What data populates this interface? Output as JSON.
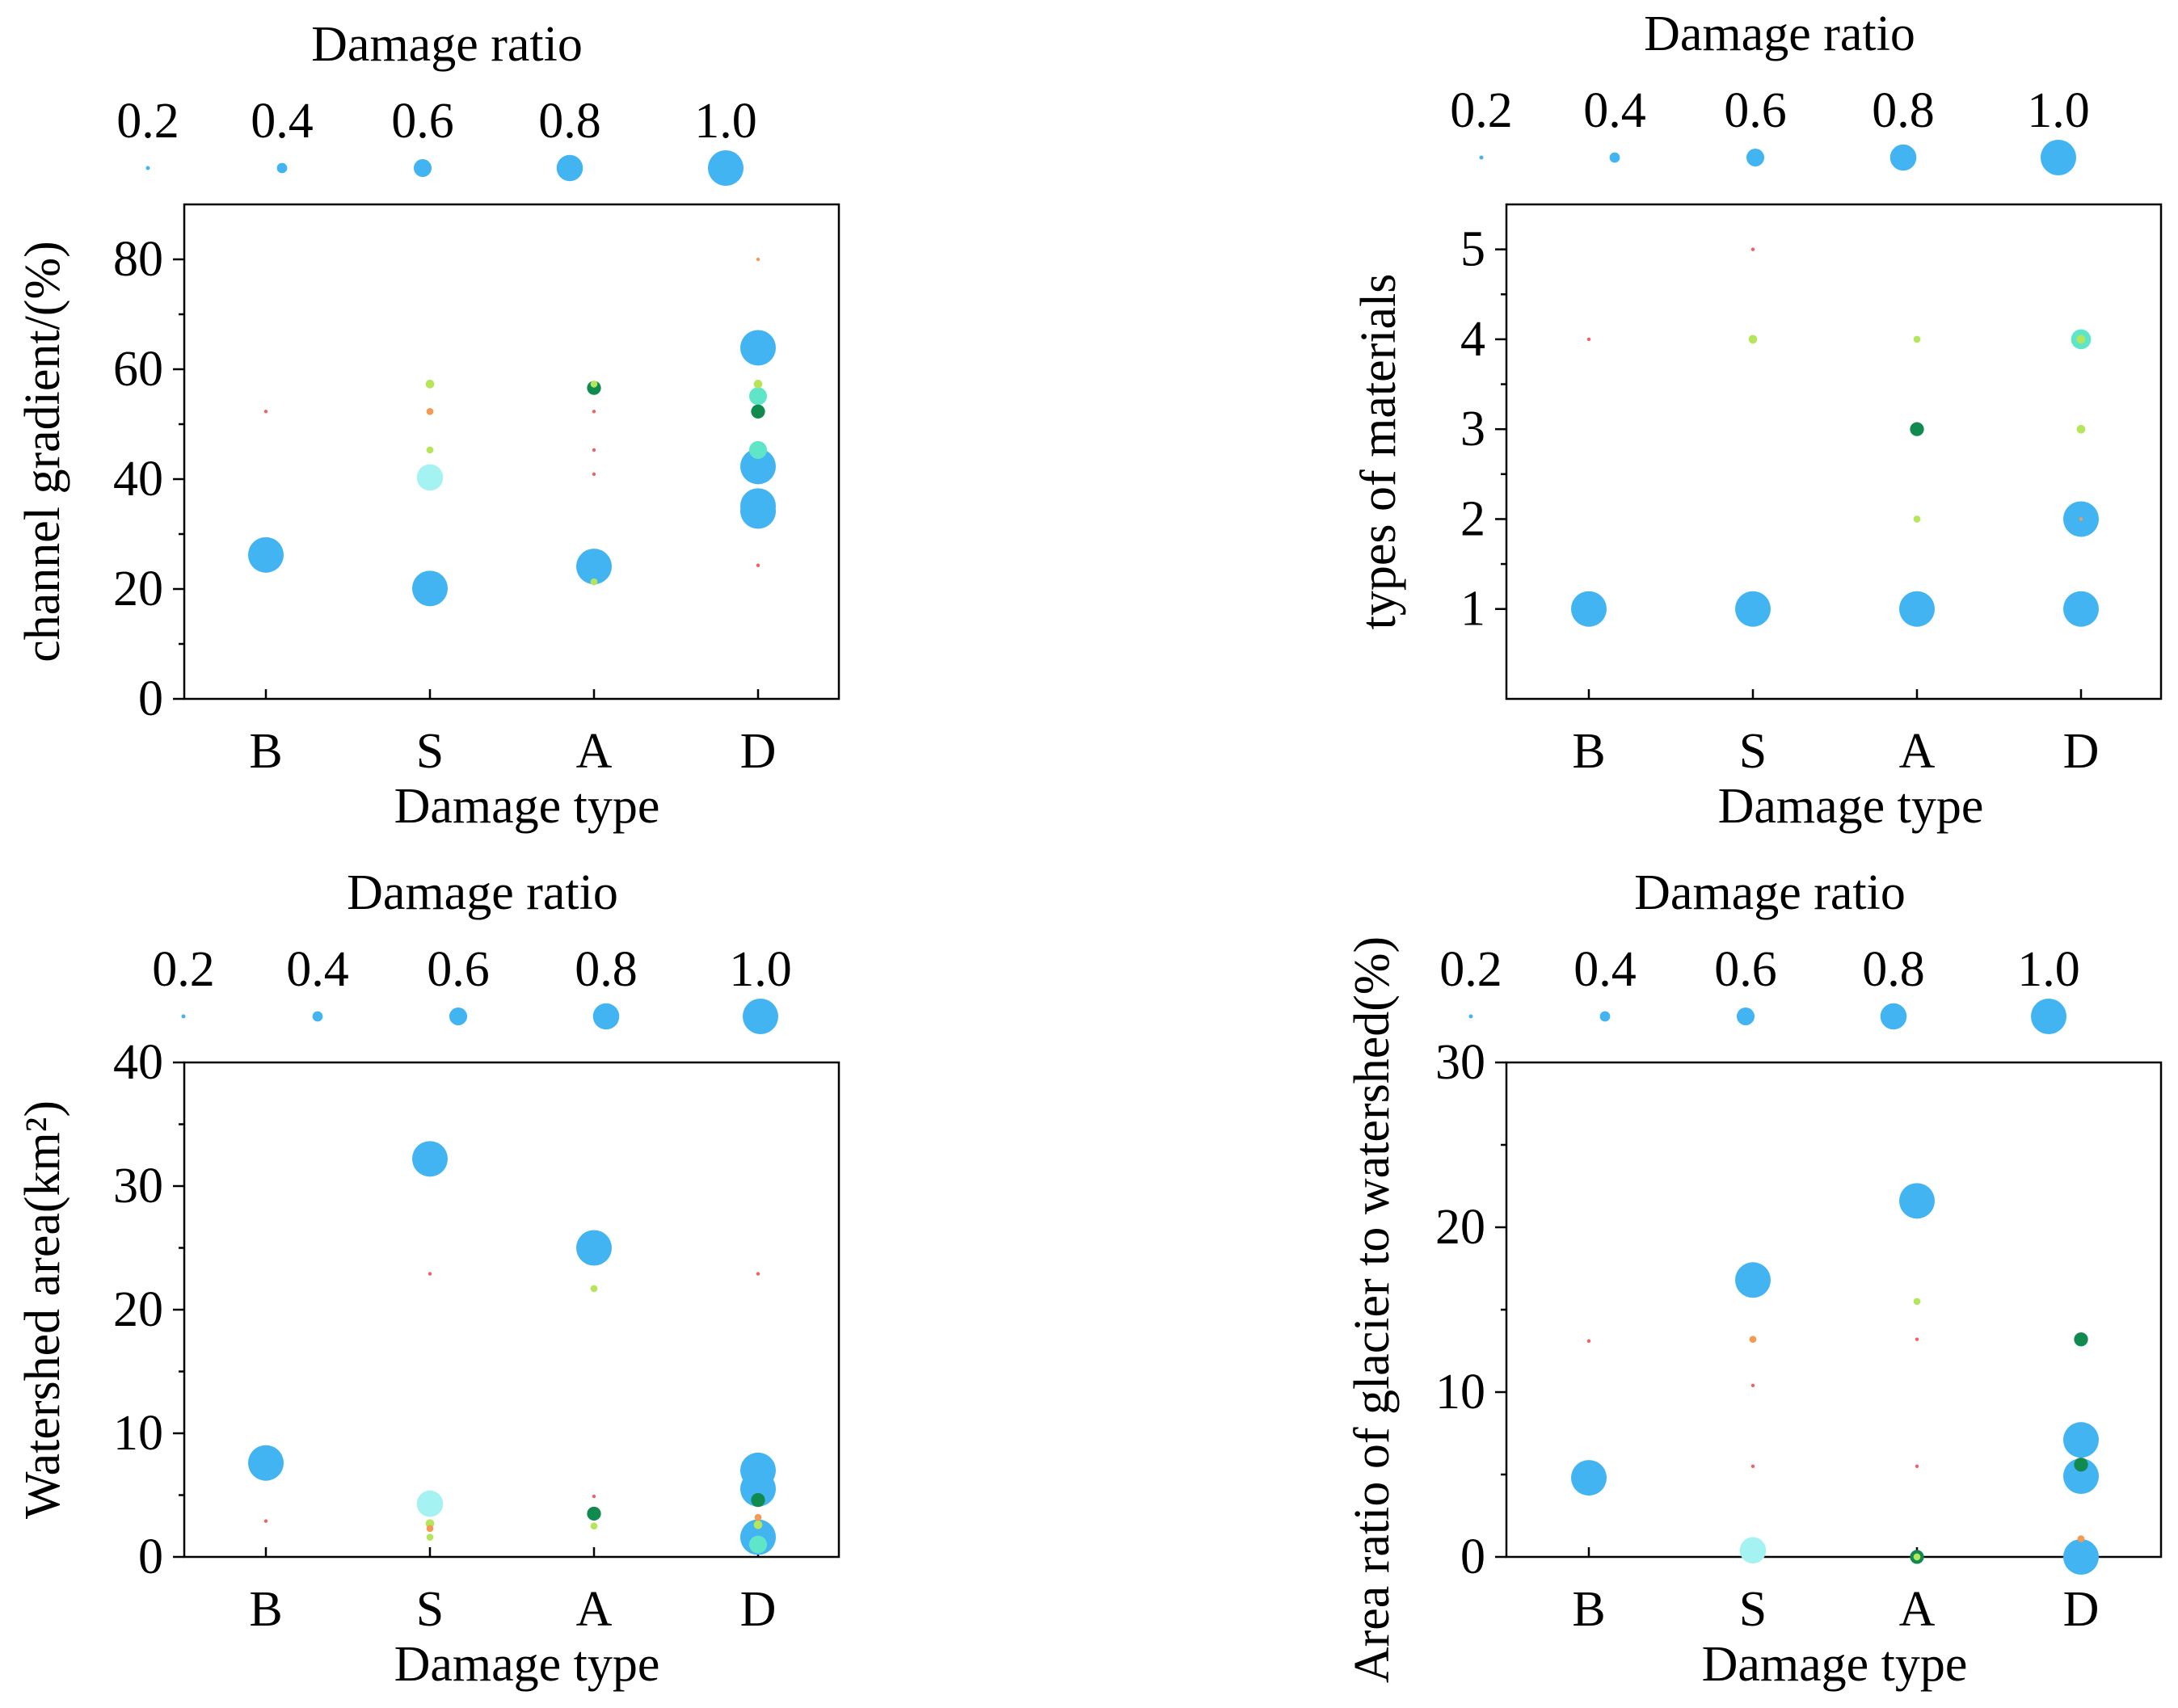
{
  "colors": {
    "main_blue": "#42B4F2",
    "light_cyan": "#A4F2F2",
    "aqua": "#5FE6C8",
    "dark_green": "#108A4E",
    "yellow_green": "#B5E55A",
    "orange": "#F59A52",
    "red": "#F26060"
  },
  "chart_data": [
    {
      "id": "gradient",
      "type": "scatter",
      "legend_title": "Damage ratio",
      "legend_values": [
        "0.2",
        "0.4",
        "0.6",
        "0.8",
        "1.0"
      ],
      "xlabel": "Damage type",
      "ylabel": "channel gradient/(%)",
      "categories": [
        "B",
        "S",
        "A",
        "D"
      ],
      "ylim": [
        0,
        90
      ],
      "yticks": [
        "0",
        "20",
        "40",
        "60",
        "80"
      ],
      "points": [
        {
          "x": "B",
          "y": 26.2,
          "ratio": 1.0,
          "color": "main_blue"
        },
        {
          "x": "B",
          "y": 52.3,
          "ratio": 0.05,
          "color": "red"
        },
        {
          "x": "S",
          "y": 20.1,
          "ratio": 1.0,
          "color": "main_blue"
        },
        {
          "x": "S",
          "y": 40.3,
          "ratio": 0.8,
          "color": "light_cyan"
        },
        {
          "x": "S",
          "y": 45.3,
          "ratio": 0.3,
          "color": "yellow_green"
        },
        {
          "x": "S",
          "y": 52.3,
          "ratio": 0.3,
          "color": "orange"
        },
        {
          "x": "S",
          "y": 57.3,
          "ratio": 0.35,
          "color": "yellow_green"
        },
        {
          "x": "A",
          "y": 24.1,
          "ratio": 1.0,
          "color": "main_blue"
        },
        {
          "x": "A",
          "y": 21.3,
          "ratio": 0.3,
          "color": "yellow_green"
        },
        {
          "x": "A",
          "y": 40.9,
          "ratio": 0.05,
          "color": "red"
        },
        {
          "x": "A",
          "y": 45.3,
          "ratio": 0.04,
          "color": "red"
        },
        {
          "x": "A",
          "y": 52.3,
          "ratio": 0.05,
          "color": "red"
        },
        {
          "x": "A",
          "y": 56.6,
          "ratio": 0.5,
          "color": "dark_green"
        },
        {
          "x": "A",
          "y": 57.3,
          "ratio": 0.3,
          "color": "yellow_green"
        },
        {
          "x": "D",
          "y": 24.3,
          "ratio": 0.05,
          "color": "red"
        },
        {
          "x": "D",
          "y": 34.2,
          "ratio": 1.0,
          "color": "main_blue"
        },
        {
          "x": "D",
          "y": 35.1,
          "ratio": 1.0,
          "color": "main_blue"
        },
        {
          "x": "D",
          "y": 42.3,
          "ratio": 1.0,
          "color": "main_blue"
        },
        {
          "x": "D",
          "y": 45.3,
          "ratio": 0.6,
          "color": "aqua"
        },
        {
          "x": "D",
          "y": 52.3,
          "ratio": 0.5,
          "color": "dark_green"
        },
        {
          "x": "D",
          "y": 55.1,
          "ratio": 0.6,
          "color": "aqua"
        },
        {
          "x": "D",
          "y": 57.3,
          "ratio": 0.35,
          "color": "yellow_green"
        },
        {
          "x": "D",
          "y": 63.9,
          "ratio": 1.0,
          "color": "main_blue"
        },
        {
          "x": "D",
          "y": 80.0,
          "ratio": 0.15,
          "color": "orange"
        }
      ]
    },
    {
      "id": "materials",
      "type": "scatter",
      "legend_title": "Damage ratio",
      "legend_values": [
        "0.2",
        "0.4",
        "0.6",
        "0.8",
        "1.0"
      ],
      "xlabel": "Damage type",
      "ylabel": "types of materials",
      "categories": [
        "B",
        "S",
        "A",
        "D"
      ],
      "ylim": [
        0,
        5.5
      ],
      "yticks": [
        "1",
        "2",
        "3",
        "4",
        "5"
      ],
      "points": [
        {
          "x": "B",
          "y": 1,
          "ratio": 1.0,
          "color": "main_blue"
        },
        {
          "x": "B",
          "y": 4,
          "ratio": 0.04,
          "color": "red"
        },
        {
          "x": "S",
          "y": 1,
          "ratio": 1.0,
          "color": "main_blue"
        },
        {
          "x": "S",
          "y": 4,
          "ratio": 0.35,
          "color": "yellow_green"
        },
        {
          "x": "S",
          "y": 5,
          "ratio": 0.04,
          "color": "red"
        },
        {
          "x": "A",
          "y": 1,
          "ratio": 1.0,
          "color": "main_blue"
        },
        {
          "x": "A",
          "y": 2,
          "ratio": 0.3,
          "color": "yellow_green"
        },
        {
          "x": "A",
          "y": 3,
          "ratio": 0.5,
          "color": "dark_green"
        },
        {
          "x": "A",
          "y": 4,
          "ratio": 0.3,
          "color": "yellow_green"
        },
        {
          "x": "D",
          "y": 1,
          "ratio": 1.0,
          "color": "main_blue"
        },
        {
          "x": "D",
          "y": 2,
          "ratio": 1.0,
          "color": "main_blue"
        },
        {
          "x": "D",
          "y": 2,
          "ratio": 0.15,
          "color": "orange"
        },
        {
          "x": "D",
          "y": 3,
          "ratio": 0.35,
          "color": "yellow_green"
        },
        {
          "x": "D",
          "y": 4,
          "ratio": 0.65,
          "color": "aqua"
        },
        {
          "x": "D",
          "y": 4,
          "ratio": 0.35,
          "color": "yellow_green"
        }
      ]
    },
    {
      "id": "watershed",
      "type": "scatter",
      "legend_title": "Damage ratio",
      "legend_values": [
        "0.2",
        "0.4",
        "0.6",
        "0.8",
        "1.0"
      ],
      "xlabel": "Damage type",
      "ylabel": "Watershed area(km²)",
      "categories": [
        "B",
        "S",
        "A",
        "D"
      ],
      "ylim": [
        0,
        40
      ],
      "yticks": [
        "0",
        "10",
        "20",
        "30",
        "40"
      ],
      "points": [
        {
          "x": "B",
          "y": 7.6,
          "ratio": 1.0,
          "color": "main_blue"
        },
        {
          "x": "B",
          "y": 2.9,
          "ratio": 0.04,
          "color": "red"
        },
        {
          "x": "S",
          "y": 32.2,
          "ratio": 1.0,
          "color": "main_blue"
        },
        {
          "x": "S",
          "y": 22.9,
          "ratio": 0.04,
          "color": "red"
        },
        {
          "x": "S",
          "y": 4.3,
          "ratio": 0.8,
          "color": "light_cyan"
        },
        {
          "x": "S",
          "y": 2.7,
          "ratio": 0.35,
          "color": "yellow_green"
        },
        {
          "x": "S",
          "y": 2.3,
          "ratio": 0.3,
          "color": "orange"
        },
        {
          "x": "S",
          "y": 1.6,
          "ratio": 0.3,
          "color": "yellow_green"
        },
        {
          "x": "A",
          "y": 25.0,
          "ratio": 1.0,
          "color": "main_blue"
        },
        {
          "x": "A",
          "y": 21.7,
          "ratio": 0.3,
          "color": "yellow_green"
        },
        {
          "x": "A",
          "y": 4.9,
          "ratio": 0.05,
          "color": "red"
        },
        {
          "x": "A",
          "y": 3.5,
          "ratio": 0.5,
          "color": "dark_green"
        },
        {
          "x": "A",
          "y": 2.5,
          "ratio": 0.3,
          "color": "yellow_green"
        },
        {
          "x": "D",
          "y": 22.9,
          "ratio": 0.05,
          "color": "red"
        },
        {
          "x": "D",
          "y": 7.0,
          "ratio": 1.0,
          "color": "main_blue"
        },
        {
          "x": "D",
          "y": 5.5,
          "ratio": 1.0,
          "color": "main_blue"
        },
        {
          "x": "D",
          "y": 4.6,
          "ratio": 0.5,
          "color": "dark_green"
        },
        {
          "x": "D",
          "y": 3.2,
          "ratio": 0.3,
          "color": "orange"
        },
        {
          "x": "D",
          "y": 2.6,
          "ratio": 0.35,
          "color": "yellow_green"
        },
        {
          "x": "D",
          "y": 1.6,
          "ratio": 1.0,
          "color": "main_blue"
        },
        {
          "x": "D",
          "y": 1.0,
          "ratio": 0.6,
          "color": "aqua"
        }
      ]
    },
    {
      "id": "glacier",
      "type": "scatter",
      "legend_title": "Damage ratio",
      "legend_values": [
        "0.2",
        "0.4",
        "0.6",
        "0.8",
        "1.0"
      ],
      "xlabel": "Damage type",
      "ylabel": "Area ratio of glacier to watershed(%)",
      "categories": [
        "B",
        "S",
        "A",
        "D"
      ],
      "ylim": [
        0,
        30
      ],
      "yticks": [
        "0",
        "10",
        "20",
        "30"
      ],
      "points": [
        {
          "x": "B",
          "y": 4.8,
          "ratio": 1.0,
          "color": "main_blue"
        },
        {
          "x": "B",
          "y": 13.1,
          "ratio": 0.04,
          "color": "red"
        },
        {
          "x": "S",
          "y": 16.8,
          "ratio": 1.0,
          "color": "main_blue"
        },
        {
          "x": "S",
          "y": 13.2,
          "ratio": 0.3,
          "color": "orange"
        },
        {
          "x": "S",
          "y": 10.4,
          "ratio": 0.03,
          "color": "red"
        },
        {
          "x": "S",
          "y": 5.5,
          "ratio": 0.03,
          "color": "red"
        },
        {
          "x": "S",
          "y": 0.4,
          "ratio": 0.8,
          "color": "light_cyan"
        },
        {
          "x": "A",
          "y": 21.6,
          "ratio": 1.0,
          "color": "main_blue"
        },
        {
          "x": "A",
          "y": 15.5,
          "ratio": 0.3,
          "color": "yellow_green"
        },
        {
          "x": "A",
          "y": 13.2,
          "ratio": 0.05,
          "color": "red"
        },
        {
          "x": "A",
          "y": 5.5,
          "ratio": 0.05,
          "color": "red"
        },
        {
          "x": "A",
          "y": 0.0,
          "ratio": 0.5,
          "color": "dark_green"
        },
        {
          "x": "A",
          "y": 0.0,
          "ratio": 0.3,
          "color": "yellow_green"
        },
        {
          "x": "D",
          "y": 13.2,
          "ratio": 0.5,
          "color": "dark_green"
        },
        {
          "x": "D",
          "y": 7.1,
          "ratio": 1.0,
          "color": "main_blue"
        },
        {
          "x": "D",
          "y": 5.6,
          "ratio": 0.5,
          "color": "dark_green"
        },
        {
          "x": "D",
          "y": 4.9,
          "ratio": 1.0,
          "color": "main_blue"
        },
        {
          "x": "D",
          "y": 1.1,
          "ratio": 0.3,
          "color": "orange"
        },
        {
          "x": "D",
          "y": 0.0,
          "ratio": 1.0,
          "color": "main_blue"
        }
      ]
    }
  ]
}
